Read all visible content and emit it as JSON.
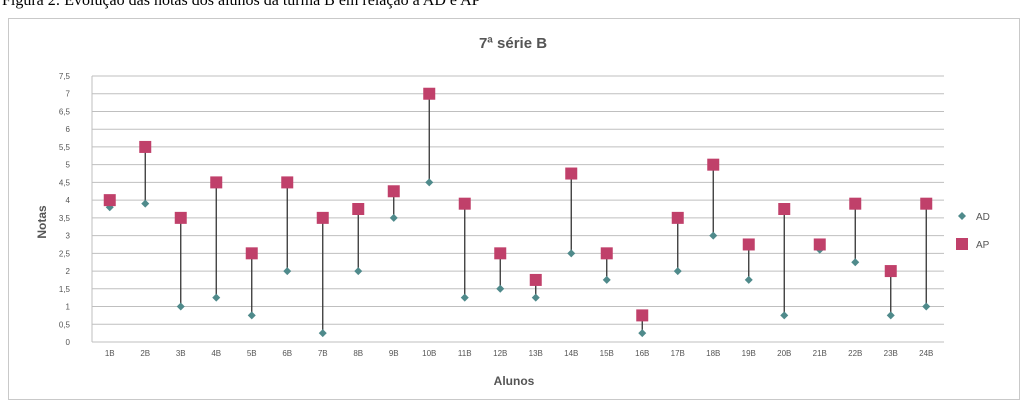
{
  "caption": "Figura 2: Evolução das notas dos alunos da turma B em relação à AD e AP",
  "chart_data": {
    "type": "scatter",
    "title": "7ª série B",
    "xlabel": "Alunos",
    "ylabel": "Notas",
    "categories": [
      "1B",
      "2B",
      "3B",
      "4B",
      "5B",
      "6B",
      "7B",
      "8B",
      "9B",
      "10B",
      "11B",
      "12B",
      "13B",
      "14B",
      "15B",
      "16B",
      "17B",
      "18B",
      "19B",
      "20B",
      "21B",
      "22B",
      "23B",
      "24B"
    ],
    "y_ticks": [
      "0",
      "0,5",
      "1",
      "1,5",
      "2",
      "2,5",
      "3",
      "3,5",
      "4",
      "4,5",
      "5",
      "5,5",
      "6",
      "6,5",
      "7",
      "7,5"
    ],
    "ylim": [
      0,
      7.5
    ],
    "grid": true,
    "legend_position": "right",
    "series": [
      {
        "name": "AD",
        "color": "#4f8a8b",
        "values": [
          3.8,
          3.9,
          1.0,
          1.25,
          0.75,
          2.0,
          0.25,
          2.0,
          3.5,
          4.5,
          1.25,
          1.5,
          1.25,
          2.5,
          1.75,
          0.25,
          2.0,
          3.0,
          1.75,
          0.75,
          2.6,
          2.25,
          0.75,
          1.0
        ]
      },
      {
        "name": "AP",
        "color": "#c0406a",
        "values": [
          4.0,
          5.5,
          3.5,
          4.5,
          2.5,
          4.5,
          3.5,
          3.75,
          4.25,
          7.0,
          3.9,
          2.5,
          1.75,
          4.75,
          2.5,
          0.75,
          3.5,
          5.0,
          2.75,
          3.75,
          2.75,
          3.9,
          2.0,
          3.9
        ]
      }
    ]
  }
}
